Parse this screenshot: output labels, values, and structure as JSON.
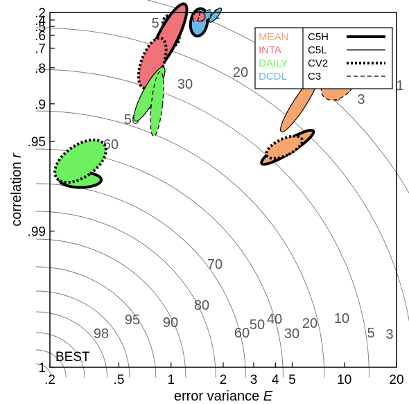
{
  "chart_data": {
    "type": "scatter",
    "xlabel_prefix": "error variance ",
    "xlabel_var": "E",
    "ylabel_prefix": "correlation ",
    "ylabel_var": "r",
    "x_scale": "log",
    "xlim": [
      0.2,
      20
    ],
    "y_scale": "r-transform",
    "ylim": [
      0.2,
      1
    ],
    "x_ticks": [
      {
        "v": 0.2,
        "label": ".2"
      },
      {
        "v": 0.5,
        "label": ".5"
      },
      {
        "v": 1,
        "label": "1"
      },
      {
        "v": 2,
        "label": "2"
      },
      {
        "v": 3,
        "label": "3"
      },
      {
        "v": 4,
        "label": "4"
      },
      {
        "v": 5,
        "label": "5"
      },
      {
        "v": 10,
        "label": "10"
      },
      {
        "v": 20,
        "label": "20"
      }
    ],
    "y_ticks": [
      {
        "v": 0.2,
        "label": ".2"
      },
      {
        "v": 0.4,
        "label": ".4"
      },
      {
        "v": 0.5,
        "label": ".5"
      },
      {
        "v": 0.6,
        "label": ".6"
      },
      {
        "v": 0.7,
        "label": ".7"
      },
      {
        "v": 0.8,
        "label": ".8"
      },
      {
        "v": 0.9,
        "label": ".9"
      },
      {
        "v": 0.95,
        "label": ".95"
      },
      {
        "v": 0.99,
        "label": ".99"
      },
      {
        "v": 1,
        "label": "1"
      }
    ],
    "contour_labels": [
      "1",
      "3",
      "5",
      "10",
      "20",
      "30",
      "40",
      "50",
      "60",
      "70",
      "80",
      "90",
      "95",
      "98"
    ],
    "best_label": "BEST",
    "legend": {
      "placement": "top-right",
      "variables": [
        {
          "name": "MEAN",
          "color": "#f5a66e"
        },
        {
          "name": "INTA",
          "color": "#f0737a"
        },
        {
          "name": "DAILY",
          "color": "#6ef060"
        },
        {
          "name": "DCDL",
          "color": "#6ab8ea"
        }
      ],
      "models": [
        {
          "name": "C5H",
          "style": "thick-solid"
        },
        {
          "name": "C5L",
          "style": "thin-solid"
        },
        {
          "name": "CV2",
          "style": "thick-dotted"
        },
        {
          "name": "C3",
          "style": "thin-dashed"
        }
      ]
    },
    "series": [
      {
        "variable": "DCDL",
        "model": "C5H",
        "E": 1.45,
        "r": 0.44
      },
      {
        "variable": "DCDL",
        "model": "C5L",
        "E": 1.8,
        "r": 0.29
      },
      {
        "variable": "DCDL",
        "model": "CV2",
        "E": 1.0,
        "r": 0.55
      },
      {
        "variable": "DCDL",
        "model": "C3",
        "E": 1.6,
        "r": 0.3
      },
      {
        "variable": "INTA",
        "model": "C5H",
        "E": 0.95,
        "r": 0.63
      },
      {
        "variable": "INTA",
        "model": "C5L",
        "E": 1.45,
        "r": 0.32
      },
      {
        "variable": "INTA",
        "model": "CV2",
        "E": 0.78,
        "r": 0.78
      },
      {
        "variable": "INTA",
        "model": "C3",
        "E": 1.4,
        "r": 0.33
      },
      {
        "variable": "DAILY",
        "model": "C5H",
        "E": 0.3,
        "r": 0.975
      },
      {
        "variable": "DAILY",
        "model": "C5L",
        "E": 0.75,
        "r": 0.88
      },
      {
        "variable": "DAILY",
        "model": "CV2",
        "E": 0.3,
        "r": 0.965
      },
      {
        "variable": "DAILY",
        "model": "C3",
        "E": 0.83,
        "r": 0.9
      },
      {
        "variable": "MEAN",
        "model": "C5H",
        "E": 4.7,
        "r": 0.955
      },
      {
        "variable": "MEAN",
        "model": "C5L",
        "E": 5.5,
        "r": 0.9
      },
      {
        "variable": "MEAN",
        "model": "CV2",
        "E": 4.5,
        "r": 0.955
      },
      {
        "variable": "MEAN",
        "model": "C3",
        "E": 9.3,
        "r": 0.85
      }
    ]
  }
}
